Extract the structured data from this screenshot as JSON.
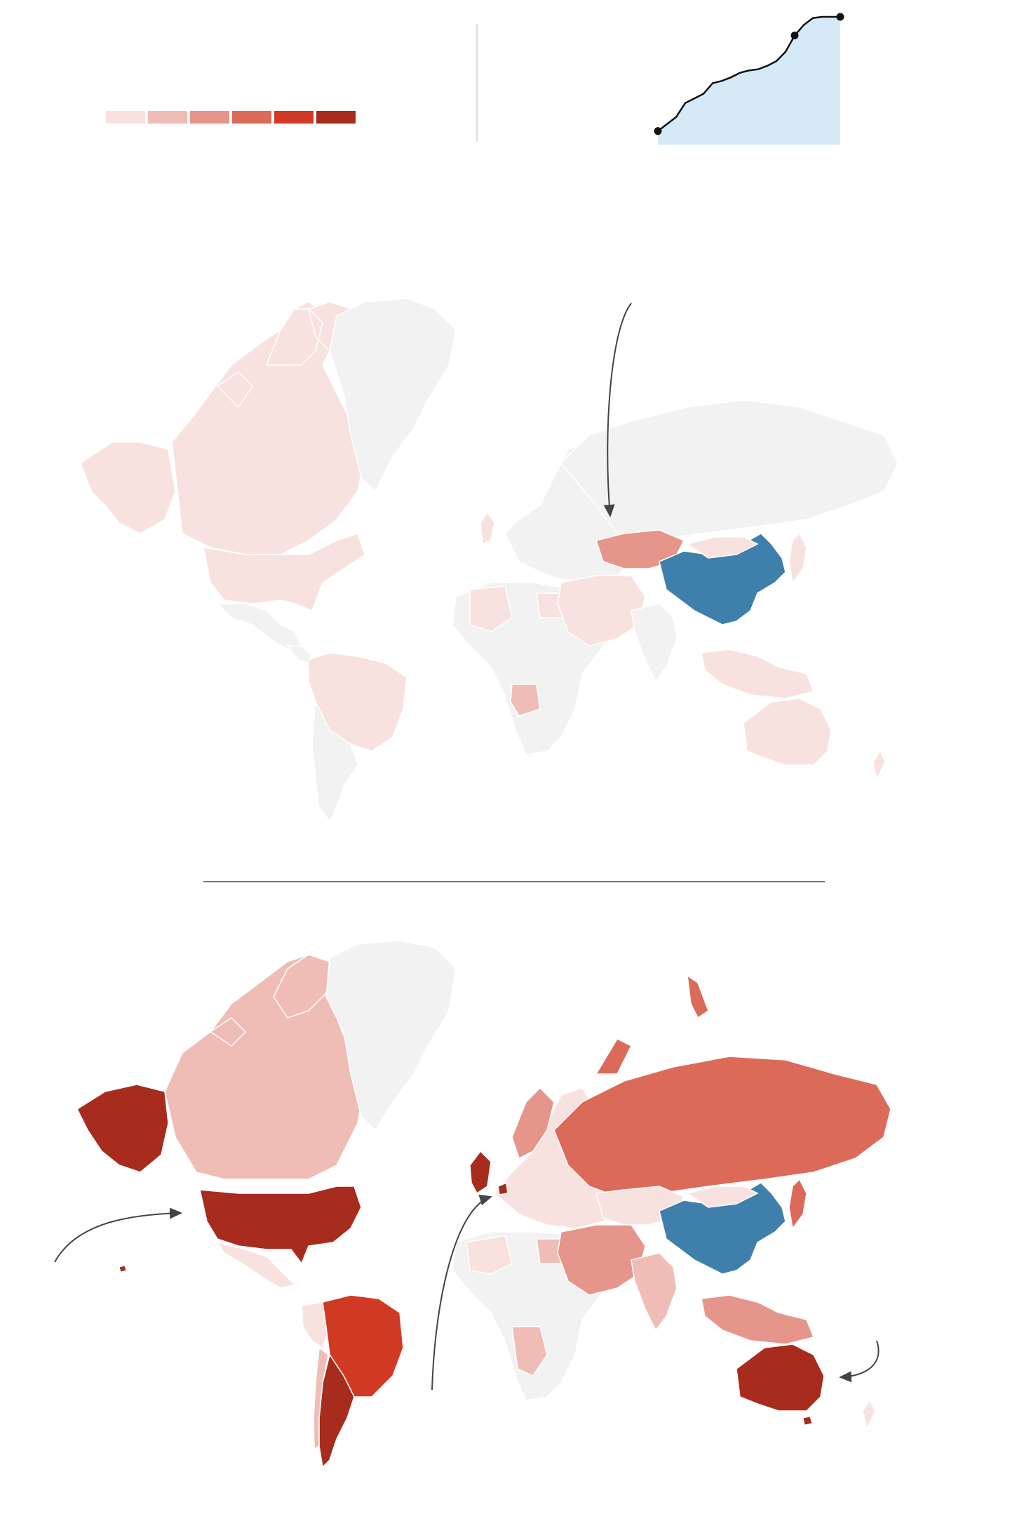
{
  "palette": {
    "no_data": "#f2f2f2",
    "highlight": "#3f7fab",
    "area_fill": "#d6e9f6",
    "line": "#111111",
    "divider": "#444444"
  },
  "legend": {
    "bins": [
      {
        "color": "#f8e2df"
      },
      {
        "color": "#efbdb6"
      },
      {
        "color": "#e6958a"
      },
      {
        "color": "#dc6a58"
      },
      {
        "color": "#d03a24"
      },
      {
        "color": "#a72c1d"
      }
    ]
  },
  "sparkline": {
    "type": "area",
    "x": [
      0,
      1,
      2,
      3,
      4,
      5,
      6,
      7,
      8,
      9,
      10,
      11,
      12,
      13,
      14,
      15,
      16,
      17,
      18,
      19,
      20
    ],
    "y": [
      0.02,
      0.08,
      0.14,
      0.26,
      0.3,
      0.34,
      0.43,
      0.45,
      0.48,
      0.52,
      0.54,
      0.55,
      0.58,
      0.62,
      0.7,
      0.84,
      0.93,
      0.99,
      1.0,
      1.0,
      1.0
    ],
    "markers_at": [
      0,
      15,
      20
    ]
  },
  "maps": [
    {
      "id": "map-top",
      "highlight_country": "china",
      "annotated_country": "kazakhstan"
    },
    {
      "id": "map-bottom",
      "highlight_country": "china",
      "annotated_countries": [
        "united-states",
        "united-kingdom",
        "australia"
      ]
    }
  ]
}
